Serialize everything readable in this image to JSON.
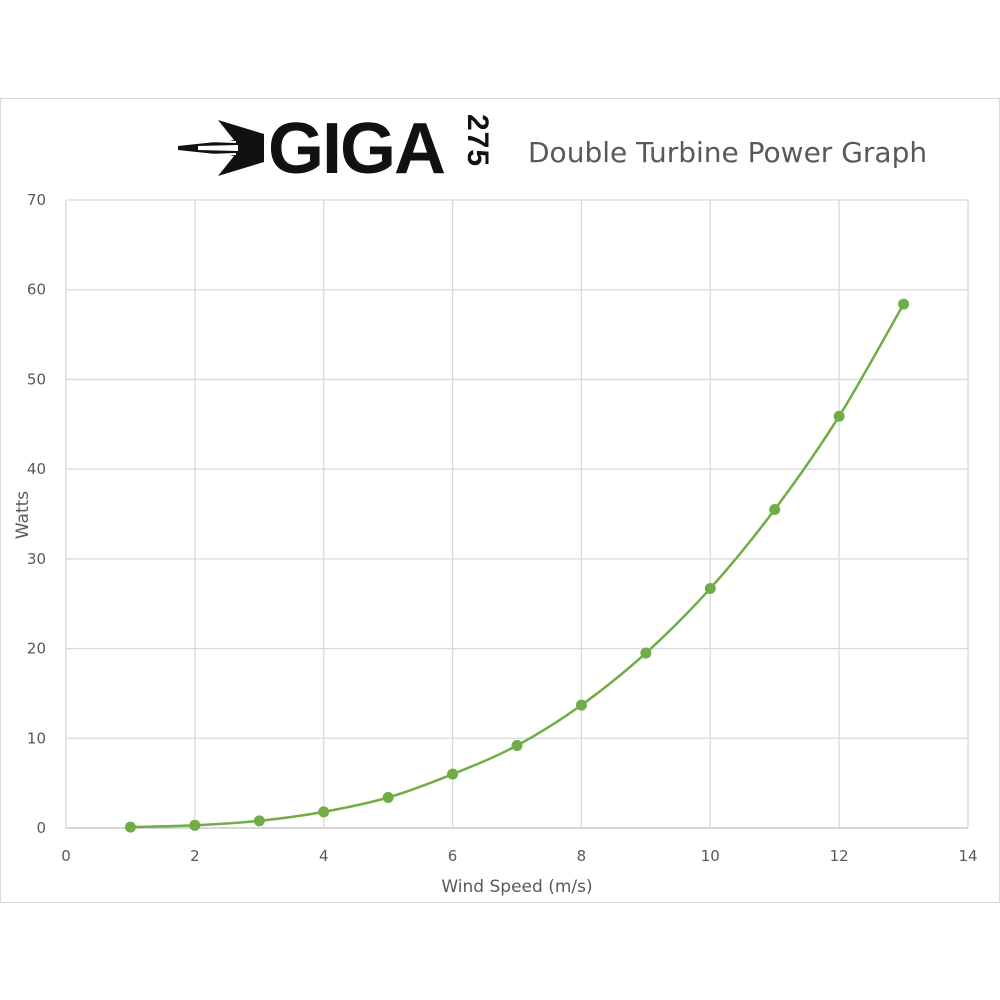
{
  "brand": {
    "wordmark": "GIGA",
    "model": "275"
  },
  "chart_data": {
    "type": "line",
    "title": "Double Turbine Power Graph",
    "xlabel": "Wind Speed (m/s)",
    "ylabel": "Watts",
    "xlim": [
      0,
      14
    ],
    "ylim": [
      0,
      70
    ],
    "xticks": [
      0,
      2,
      4,
      6,
      8,
      10,
      12,
      14
    ],
    "yticks": [
      0,
      10,
      20,
      30,
      40,
      50,
      60,
      70
    ],
    "grid": true,
    "series": [
      {
        "color": "#70ad47",
        "x": [
          1,
          2,
          3,
          4,
          5,
          6,
          7,
          8,
          9,
          10,
          11,
          12,
          13
        ],
        "y": [
          0.1,
          0.3,
          0.8,
          1.8,
          3.4,
          6.0,
          9.2,
          13.7,
          19.5,
          26.7,
          35.5,
          45.9,
          58.4
        ]
      }
    ]
  }
}
